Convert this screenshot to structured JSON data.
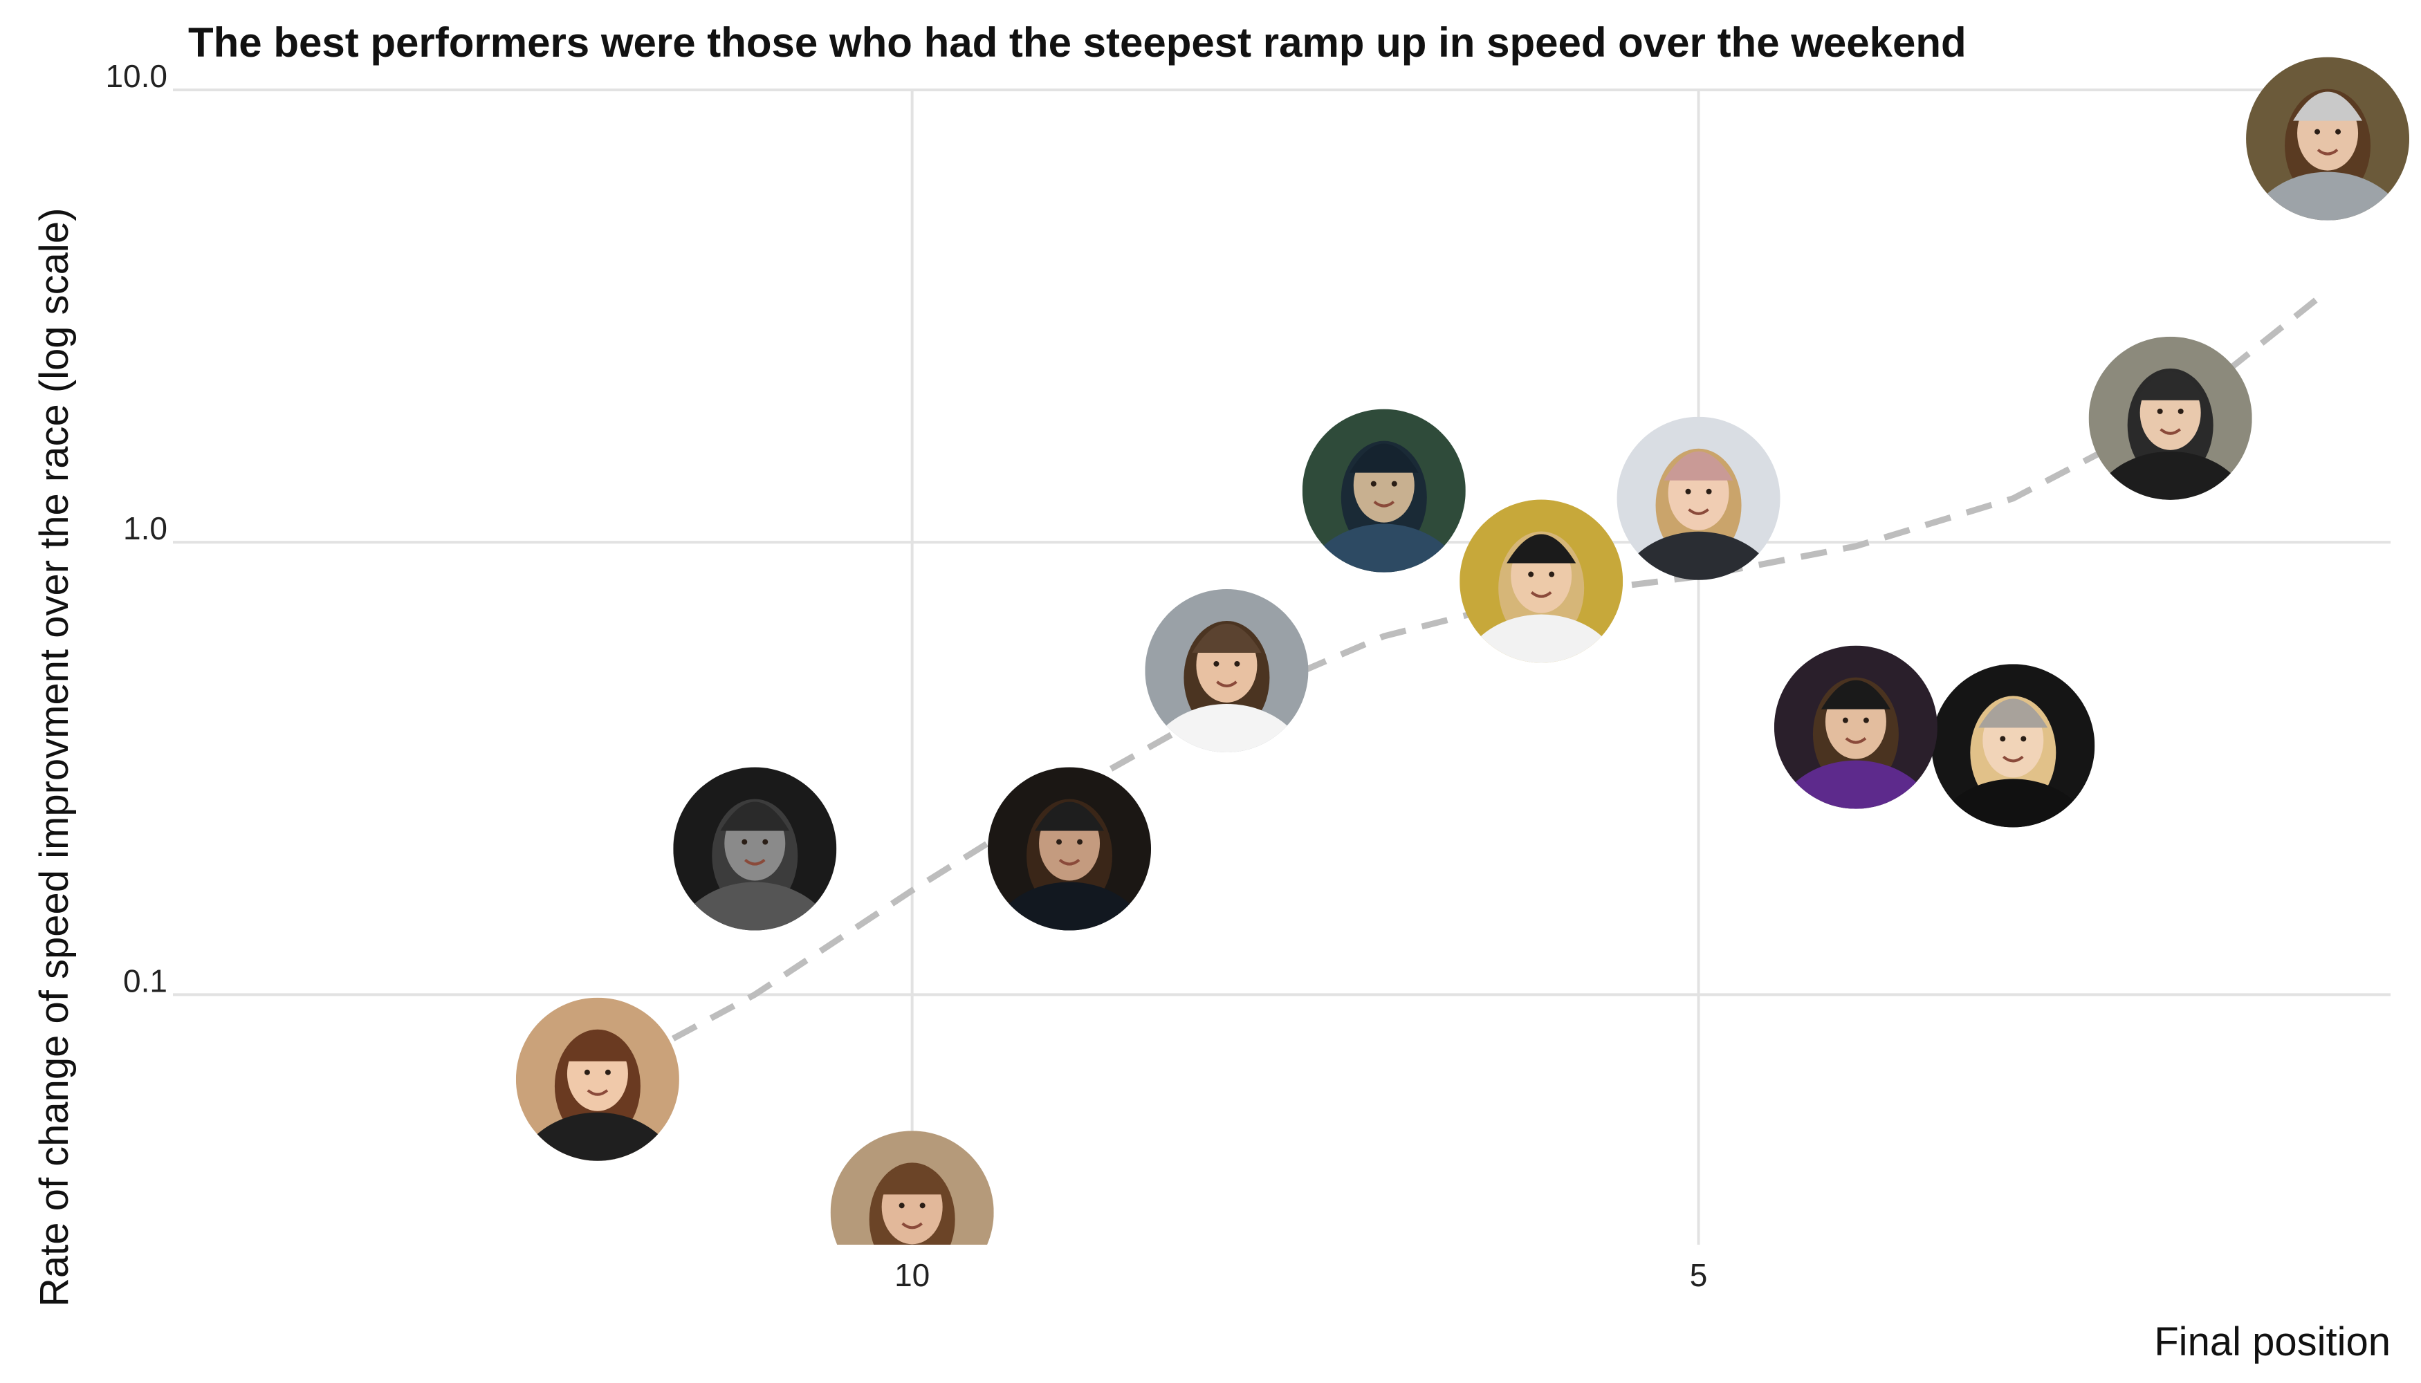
{
  "chart_data": {
    "type": "scatter",
    "title": "The best performers were those who had the steepest ramp up in speed over the weekend",
    "xlabel": "Final position",
    "ylabel": "Rate of change of speed improvment over the race (log scale)",
    "x_reversed": true,
    "x_range": [
      14.7,
      0.6
    ],
    "x_ticks": [
      10,
      5
    ],
    "x_tick_labels": [
      "10",
      "5"
    ],
    "y_scale": "log",
    "y_range": [
      0.028,
      10.0
    ],
    "y_ticks": [
      0.1,
      1.0,
      10.0
    ],
    "y_tick_labels": [
      "0.1",
      "1.0",
      "10.0"
    ],
    "grid": true,
    "marker": "rider-photo-circle",
    "points": [
      {
        "x": 1,
        "y": 7.8
      },
      {
        "x": 2,
        "y": 1.88
      },
      {
        "x": 3,
        "y": 0.355
      },
      {
        "x": 4,
        "y": 0.39
      },
      {
        "x": 5,
        "y": 1.25
      },
      {
        "x": 6,
        "y": 0.82
      },
      {
        "x": 7,
        "y": 1.3
      },
      {
        "x": 8,
        "y": 0.52
      },
      {
        "x": 9,
        "y": 0.21
      },
      {
        "x": 10,
        "y": 0.033
      },
      {
        "x": 11,
        "y": 0.21
      },
      {
        "x": 12,
        "y": 0.065
      }
    ],
    "trend": {
      "style": "dashed",
      "color": "#bdbdbd",
      "x": [
        12,
        11,
        10,
        9,
        8,
        7,
        6,
        5,
        4,
        3,
        2,
        1
      ],
      "y": [
        0.065,
        0.1,
        0.17,
        0.28,
        0.44,
        0.62,
        0.76,
        0.84,
        0.98,
        1.25,
        1.9,
        3.6
      ]
    }
  },
  "photo_palette": [
    {
      "bg": "#6b5a3a",
      "skin": "#e7c4a8",
      "hair": "#5a3b22",
      "top": "#9da3a8",
      "hat": "#c9c9c9"
    },
    {
      "bg": "#8c8a7c",
      "skin": "#e9c9ad",
      "hair": "#2a2a2a",
      "top": "#1d1d1d",
      "hat": "#2b2b2b"
    },
    {
      "bg": "#151515",
      "skin": "#f1d4b8",
      "hair": "#e1c189",
      "top": "#111111",
      "hat": "#a8a29b"
    },
    {
      "bg": "#2a1f2b",
      "skin": "#e3bd9e",
      "hair": "#4a3320",
      "top": "#5d2a8c",
      "hat": "#1a1a1a"
    },
    {
      "bg": "#d9dde3",
      "skin": "#f0cdb3",
      "hair": "#caa46b",
      "top": "#2a2d33",
      "hat": "#c99a96"
    },
    {
      "bg": "#c7a83a",
      "skin": "#edcaa9",
      "hair": "#d6b678",
      "top": "#f2f2f2",
      "hat": "#1b1b1b"
    },
    {
      "bg": "#2f4b3a",
      "skin": "#c8b090",
      "hair": "#1a2a36",
      "top": "#2d4a63",
      "hat": "#15232f"
    },
    {
      "bg": "#9aa1a7",
      "skin": "#e8c1a2",
      "hair": "#4b3421",
      "top": "#f4f4f4",
      "hat": "#5b4330"
    },
    {
      "bg": "#1b1714",
      "skin": "#c49b7f",
      "hair": "#3a2618",
      "top": "#121820",
      "hat": "#1e1e1e"
    },
    {
      "bg": "#b59a7a",
      "skin": "#e2b89a",
      "hair": "#6b4427",
      "top": "#151515",
      "hat": "#6b4427"
    },
    {
      "bg": "#1a1a1a",
      "skin": "#8a8a8a",
      "hair": "#3c3c3c",
      "top": "#555555",
      "hat": "#2a2a2a"
    },
    {
      "bg": "#caa27a",
      "skin": "#f0c9aa",
      "hair": "#6a3a21",
      "top": "#1f1f1f",
      "hat": "#6a3a21"
    }
  ]
}
